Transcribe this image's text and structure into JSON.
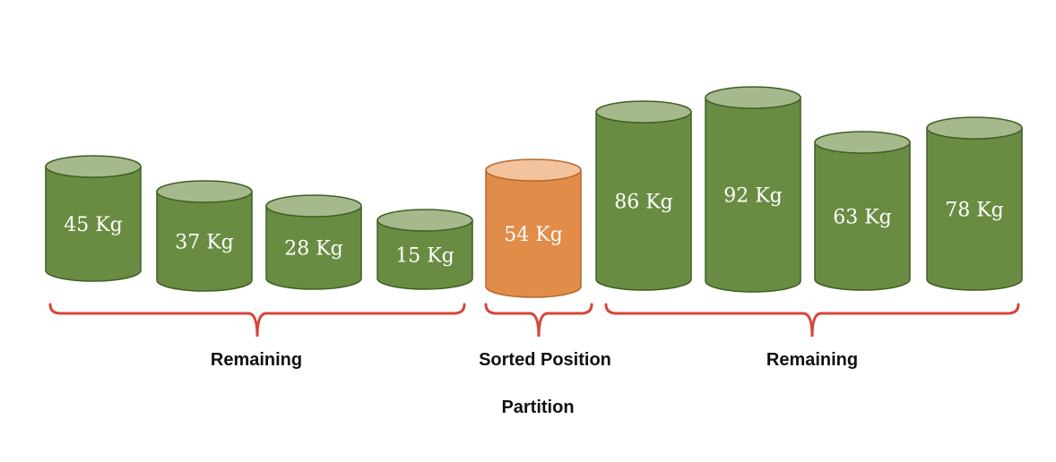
{
  "colors": {
    "cylinder_body": "#6a8c42",
    "cylinder_top": "#a5b98d",
    "cylinder_stroke": "#3f5f24",
    "pivot_body": "#e18c48",
    "pivot_top": "#f2c39c",
    "pivot_stroke": "#b8692a",
    "brace": "#d7463a"
  },
  "cylinders": [
    {
      "label": "45 Kg",
      "value": 45,
      "pivot": false
    },
    {
      "label": "37 Kg",
      "value": 37,
      "pivot": false
    },
    {
      "label": "28 Kg",
      "value": 28,
      "pivot": false
    },
    {
      "label": "15 Kg",
      "value": 15,
      "pivot": false
    },
    {
      "label": "54 Kg",
      "value": 54,
      "pivot": true
    },
    {
      "label": "86 Kg",
      "value": 86,
      "pivot": false
    },
    {
      "label": "92 Kg",
      "value": 92,
      "pivot": false
    },
    {
      "label": "63 Kg",
      "value": 63,
      "pivot": false
    },
    {
      "label": "78 Kg",
      "value": 78,
      "pivot": false
    }
  ],
  "groups": {
    "left": "Remaining",
    "pivot": "Sorted Position",
    "right": "Remaining"
  },
  "caption": "Partition"
}
